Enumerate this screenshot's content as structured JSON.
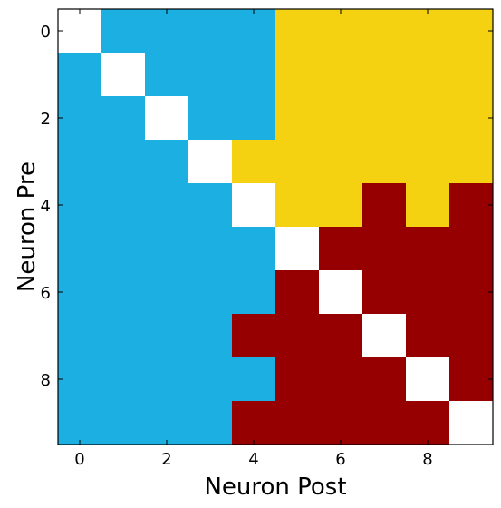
{
  "chart_data": {
    "type": "heatmap",
    "title": "",
    "xlabel": "Neuron Post",
    "ylabel": "Neuron Pre",
    "x_ticks": [
      0,
      2,
      4,
      6,
      8
    ],
    "y_ticks": [
      0,
      2,
      4,
      6,
      8
    ],
    "x_tick_labels": [
      "0",
      "2",
      "4",
      "6",
      "8"
    ],
    "y_tick_labels": [
      "0",
      "2",
      "4",
      "6",
      "8"
    ],
    "rows": 10,
    "cols": 10,
    "colors": {
      "W": "#ffffff",
      "B": "#1cb0e2",
      "Y": "#f5d211",
      "R": "#960000"
    },
    "matrix": [
      [
        "W",
        "B",
        "B",
        "B",
        "B",
        "Y",
        "Y",
        "Y",
        "Y",
        "Y"
      ],
      [
        "B",
        "W",
        "B",
        "B",
        "B",
        "Y",
        "Y",
        "Y",
        "Y",
        "Y"
      ],
      [
        "B",
        "B",
        "W",
        "B",
        "B",
        "Y",
        "Y",
        "Y",
        "Y",
        "Y"
      ],
      [
        "B",
        "B",
        "B",
        "W",
        "Y",
        "Y",
        "Y",
        "Y",
        "Y",
        "Y"
      ],
      [
        "B",
        "B",
        "B",
        "B",
        "W",
        "Y",
        "Y",
        "R",
        "Y",
        "R"
      ],
      [
        "B",
        "B",
        "B",
        "B",
        "B",
        "W",
        "R",
        "R",
        "R",
        "R"
      ],
      [
        "B",
        "B",
        "B",
        "B",
        "B",
        "R",
        "W",
        "R",
        "R",
        "R"
      ],
      [
        "B",
        "B",
        "B",
        "B",
        "R",
        "R",
        "R",
        "W",
        "R",
        "R"
      ],
      [
        "B",
        "B",
        "B",
        "B",
        "B",
        "R",
        "R",
        "R",
        "W",
        "R"
      ],
      [
        "B",
        "B",
        "B",
        "B",
        "R",
        "R",
        "R",
        "R",
        "R",
        "W"
      ]
    ]
  }
}
